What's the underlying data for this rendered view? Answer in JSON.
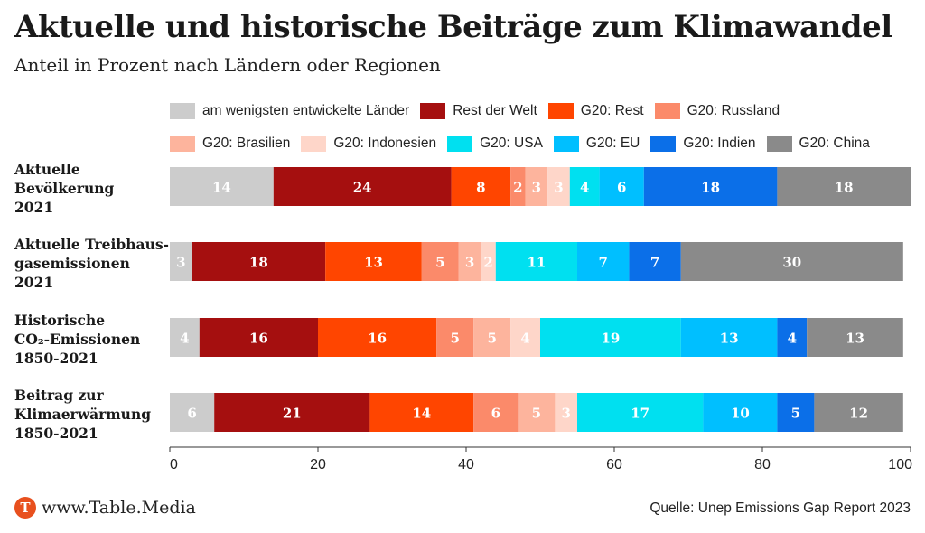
{
  "title": "Aktuelle und historische Beiträge zum Klimawandel",
  "subtitle": "Anteil in Prozent nach Ländern oder Regionen",
  "footer": {
    "brand": "www.Table.Media",
    "logo_letter": "T",
    "source": "Quelle: Unep Emissions Gap Report 2023"
  },
  "chart_data": {
    "type": "bar",
    "orientation": "horizontal",
    "stacked": true,
    "xlim": [
      0,
      100
    ],
    "xticks": [
      0,
      20,
      40,
      60,
      80,
      100
    ],
    "grid": false,
    "legend_position": "top",
    "categories": [
      {
        "lines": [
          "Aktuelle",
          "Bevölkerung",
          "2021"
        ]
      },
      {
        "lines": [
          "Aktuelle Treibhaus-",
          "gasemissionen",
          "2021"
        ]
      },
      {
        "lines": [
          "Historische",
          "CO₂-Emissionen",
          "1850-2021"
        ]
      },
      {
        "lines": [
          "Beitrag zur",
          "Klimaerwärmung",
          "1850-2021"
        ]
      }
    ],
    "series": [
      {
        "name": "am wenigsten entwickelte Länder",
        "color": "#cccccc",
        "values": [
          14,
          3,
          4,
          6
        ]
      },
      {
        "name": "Rest der Welt",
        "color": "#a50f0f",
        "values": [
          24,
          18,
          16,
          21
        ]
      },
      {
        "name": "G20: Rest",
        "color": "#ff4500",
        "values": [
          8,
          13,
          16,
          14
        ]
      },
      {
        "name": "G20: Russland",
        "color": "#fb8a6a",
        "values": [
          2,
          5,
          5,
          6
        ]
      },
      {
        "name": "G20: Brasilien",
        "color": "#fdb49d",
        "values": [
          3,
          3,
          5,
          5
        ]
      },
      {
        "name": "G20: Indonesien",
        "color": "#fed6c9",
        "values": [
          3,
          2,
          4,
          3
        ]
      },
      {
        "name": "G20: USA",
        "color": "#00e0f0",
        "values": [
          4,
          11,
          19,
          17
        ]
      },
      {
        "name": "G20: EU",
        "color": "#00bfff",
        "values": [
          6,
          7,
          13,
          10
        ]
      },
      {
        "name": "G20: Indien",
        "color": "#0b6fe8",
        "values": [
          18,
          7,
          4,
          5
        ]
      },
      {
        "name": "G20: China",
        "color": "#8a8a8a",
        "values": [
          18,
          30,
          13,
          12
        ]
      }
    ]
  }
}
